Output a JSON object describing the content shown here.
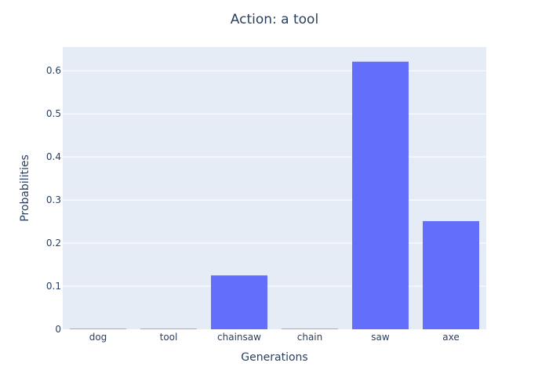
{
  "chart_data": {
    "type": "bar",
    "title": "Action: a tool",
    "xlabel": "Generations",
    "ylabel": "Probabilities",
    "categories": [
      "dog",
      "tool",
      "chainsaw",
      "chain",
      "saw",
      "axe"
    ],
    "values": [
      0.001,
      0.001,
      0.125,
      0.001,
      0.621,
      0.251
    ],
    "ylim": [
      0,
      0.655
    ],
    "yticks": [
      0,
      0.1,
      0.2,
      0.3,
      0.4,
      0.5,
      0.6
    ],
    "ytick_labels": [
      "0",
      "0.1",
      "0.2",
      "0.3",
      "0.4",
      "0.5",
      "0.6"
    ],
    "grid": true,
    "legend": "none",
    "colors": {
      "bar": "#636efa",
      "plot_background": "#e5ecf6",
      "gridline": "#ffffff",
      "text": "#2a3f5f"
    }
  }
}
